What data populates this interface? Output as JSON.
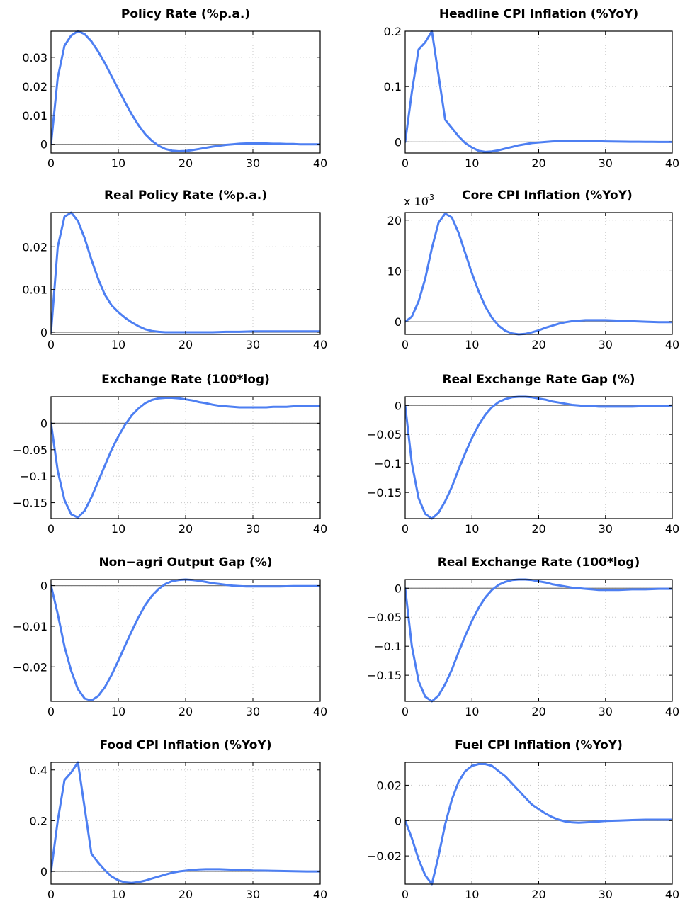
{
  "chart_data": [
    {
      "type": "line",
      "title": "Policy Rate (%p.a.)",
      "xlim": [
        0,
        40
      ],
      "ylim": [
        -0.003,
        0.039
      ],
      "xticks": [
        0,
        10,
        20,
        30,
        40
      ],
      "yticks": [
        0,
        0.01,
        0.02,
        0.03
      ],
      "ytick_labels": [
        "0",
        "0.01",
        "0.02",
        "0.03"
      ],
      "grid": "dotted",
      "zero_line": true,
      "series": [
        {
          "color": "#4d7ff2",
          "x": [
            0,
            1,
            2,
            3,
            4,
            5,
            6,
            7,
            8,
            9,
            10,
            11,
            12,
            13,
            14,
            15,
            16,
            17,
            18,
            19,
            20,
            21,
            22,
            23,
            24,
            25,
            26,
            27,
            28,
            29,
            30,
            31,
            32,
            33,
            34,
            35,
            36,
            37,
            38,
            39,
            40
          ],
          "y": [
            0,
            0.023,
            0.034,
            0.0375,
            0.039,
            0.038,
            0.0355,
            0.032,
            0.028,
            0.0235,
            0.019,
            0.0145,
            0.0103,
            0.0066,
            0.0035,
            0.0012,
            -0.0005,
            -0.0016,
            -0.0022,
            -0.0024,
            -0.0023,
            -0.002,
            -0.0016,
            -0.0012,
            -0.0008,
            -0.0005,
            -0.0002,
            0,
            0.0002,
            0.0003,
            0.0003,
            0.0003,
            0.0003,
            0.0002,
            0.0002,
            0.0001,
            0.0001,
            0,
            0,
            0,
            0
          ]
        }
      ]
    },
    {
      "type": "line",
      "title": "Headline CPI Inflation (%YoY)",
      "xlim": [
        0,
        40
      ],
      "ylim": [
        -0.02,
        0.2
      ],
      "xticks": [
        0,
        10,
        20,
        30,
        40
      ],
      "yticks": [
        0,
        0.1,
        0.2
      ],
      "ytick_labels": [
        "0",
        "0.1",
        "0.2"
      ],
      "grid": "dotted",
      "zero_line": true,
      "series": [
        {
          "color": "#4d7ff2",
          "x": [
            0,
            1,
            2,
            3,
            4,
            5,
            6,
            7,
            8,
            9,
            10,
            11,
            12,
            13,
            14,
            15,
            16,
            17,
            18,
            19,
            20,
            21,
            22,
            23,
            24,
            25,
            26,
            27,
            28,
            29,
            30,
            31,
            32,
            33,
            34,
            35,
            36,
            37,
            38,
            39,
            40
          ],
          "y": [
            0,
            0.09,
            0.167,
            0.18,
            0.2,
            0.12,
            0.04,
            0.025,
            0.01,
            -0.002,
            -0.01,
            -0.016,
            -0.018,
            -0.017,
            -0.015,
            -0.012,
            -0.009,
            -0.006,
            -0.004,
            -0.002,
            -0.001,
            0,
            0.001,
            0.0015,
            0.0018,
            0.002,
            0.002,
            0.0018,
            0.0015,
            0.0012,
            0.001,
            0.0008,
            0.0006,
            0.0005,
            0.0004,
            0.0003,
            0.0002,
            0.0001,
            0,
            0,
            0
          ]
        }
      ]
    },
    {
      "type": "line",
      "title": "Real Policy Rate (%p.a.)",
      "xlim": [
        0,
        40
      ],
      "ylim": [
        -0.0005,
        0.028
      ],
      "xticks": [
        0,
        10,
        20,
        30,
        40
      ],
      "yticks": [
        0,
        0.01,
        0.02
      ],
      "ytick_labels": [
        "0",
        "0.01",
        "0.02"
      ],
      "grid": "dotted",
      "zero_line": true,
      "series": [
        {
          "color": "#4d7ff2",
          "x": [
            0,
            1,
            2,
            3,
            4,
            5,
            6,
            7,
            8,
            9,
            10,
            11,
            12,
            13,
            14,
            15,
            16,
            17,
            18,
            19,
            20,
            22,
            24,
            26,
            28,
            30,
            32,
            34,
            36,
            38,
            40
          ],
          "y": [
            0,
            0.02,
            0.027,
            0.028,
            0.026,
            0.022,
            0.017,
            0.0125,
            0.0088,
            0.0063,
            0.0047,
            0.0034,
            0.0023,
            0.0014,
            0.0007,
            0.0003,
            0.0001,
            0,
            0,
            0,
            0,
            0,
            0,
            0.0001,
            0.0001,
            0.0002,
            0.0002,
            0.0002,
            0.0002,
            0.0002,
            0.0002
          ]
        }
      ]
    },
    {
      "type": "line",
      "title": "Core CPI Inflation (%YoY)",
      "multiplier": "x 10",
      "multiplier_exponent": "-3",
      "xlim": [
        0,
        40
      ],
      "ylim": [
        -2.5,
        21.5
      ],
      "xticks": [
        0,
        10,
        20,
        30,
        40
      ],
      "yticks": [
        0,
        10,
        20
      ],
      "ytick_labels": [
        "0",
        "10",
        "20"
      ],
      "grid": "dotted",
      "zero_line": true,
      "series": [
        {
          "color": "#4d7ff2",
          "x": [
            0,
            1,
            2,
            3,
            4,
            5,
            6,
            7,
            8,
            9,
            10,
            11,
            12,
            13,
            14,
            15,
            16,
            17,
            18,
            19,
            20,
            21,
            22,
            23,
            24,
            25,
            26,
            27,
            28,
            29,
            30,
            32,
            34,
            36,
            38,
            40
          ],
          "y": [
            0,
            1.0,
            4.0,
            8.5,
            14.5,
            19.5,
            21.3,
            20.5,
            17.5,
            13.5,
            9.5,
            6.0,
            3.0,
            0.8,
            -0.8,
            -1.8,
            -2.3,
            -2.5,
            -2.4,
            -2.1,
            -1.7,
            -1.2,
            -0.8,
            -0.4,
            -0.1,
            0.1,
            0.2,
            0.3,
            0.3,
            0.3,
            0.3,
            0.2,
            0.1,
            0,
            -0.1,
            -0.1
          ]
        }
      ]
    },
    {
      "type": "line",
      "title": "Exchange Rate (100*log)",
      "xlim": [
        0,
        40
      ],
      "ylim": [
        -0.18,
        0.05
      ],
      "xticks": [
        0,
        10,
        20,
        30,
        40
      ],
      "yticks": [
        -0.15,
        -0.1,
        -0.05,
        0
      ],
      "ytick_labels": [
        "−0.15",
        "−0.1",
        "−0.05",
        "0"
      ],
      "grid": "dotted",
      "zero_line": true,
      "series": [
        {
          "color": "#4d7ff2",
          "x": [
            0,
            1,
            2,
            3,
            4,
            5,
            6,
            7,
            8,
            9,
            10,
            11,
            12,
            13,
            14,
            15,
            16,
            17,
            18,
            19,
            20,
            21,
            22,
            23,
            24,
            25,
            26,
            27,
            28,
            29,
            30,
            31,
            32,
            33,
            34,
            35,
            36,
            37,
            38,
            39,
            40
          ],
          "y": [
            0,
            -0.09,
            -0.145,
            -0.172,
            -0.178,
            -0.165,
            -0.14,
            -0.11,
            -0.08,
            -0.05,
            -0.025,
            -0.003,
            0.015,
            0.028,
            0.038,
            0.044,
            0.047,
            0.048,
            0.048,
            0.047,
            0.045,
            0.043,
            0.04,
            0.038,
            0.035,
            0.033,
            0.032,
            0.031,
            0.03,
            0.03,
            0.03,
            0.03,
            0.03,
            0.031,
            0.031,
            0.031,
            0.032,
            0.032,
            0.032,
            0.032,
            0.032
          ]
        }
      ]
    },
    {
      "type": "line",
      "title": "Real Exchange Rate Gap (%)",
      "xlim": [
        0,
        40
      ],
      "ylim": [
        -0.195,
        0.015
      ],
      "xticks": [
        0,
        10,
        20,
        30,
        40
      ],
      "yticks": [
        -0.15,
        -0.1,
        -0.05,
        0
      ],
      "ytick_labels": [
        "−0.15",
        "−0.1",
        "−0.05",
        "0"
      ],
      "grid": "dotted",
      "zero_line": true,
      "series": [
        {
          "color": "#4d7ff2",
          "x": [
            0,
            1,
            2,
            3,
            4,
            5,
            6,
            7,
            8,
            9,
            10,
            11,
            12,
            13,
            14,
            15,
            16,
            17,
            18,
            19,
            20,
            21,
            22,
            23,
            24,
            25,
            26,
            27,
            28,
            29,
            30,
            32,
            34,
            36,
            38,
            40
          ],
          "y": [
            0,
            -0.1,
            -0.16,
            -0.187,
            -0.195,
            -0.185,
            -0.165,
            -0.14,
            -0.11,
            -0.082,
            -0.056,
            -0.034,
            -0.016,
            -0.003,
            0.006,
            0.011,
            0.014,
            0.015,
            0.015,
            0.014,
            0.012,
            0.01,
            0.007,
            0.005,
            0.003,
            0.001,
            0,
            -0.001,
            -0.001,
            -0.002,
            -0.002,
            -0.002,
            -0.002,
            -0.001,
            -0.001,
            0
          ]
        }
      ]
    },
    {
      "type": "line",
      "title": "Non−agri Output Gap (%)",
      "xlim": [
        0,
        40
      ],
      "ylim": [
        -0.0285,
        0.0015
      ],
      "xticks": [
        0,
        10,
        20,
        30,
        40
      ],
      "yticks": [
        -0.02,
        -0.01,
        0
      ],
      "ytick_labels": [
        "−0.02",
        "−0.01",
        "0"
      ],
      "grid": "dotted",
      "zero_line": true,
      "series": [
        {
          "color": "#4d7ff2",
          "x": [
            0,
            1,
            2,
            3,
            4,
            5,
            6,
            7,
            8,
            9,
            10,
            11,
            12,
            13,
            14,
            15,
            16,
            17,
            18,
            19,
            20,
            21,
            22,
            23,
            24,
            25,
            26,
            27,
            28,
            29,
            30,
            32,
            34,
            36,
            38,
            40
          ],
          "y": [
            0,
            -0.007,
            -0.015,
            -0.021,
            -0.0255,
            -0.0278,
            -0.0283,
            -0.0272,
            -0.025,
            -0.022,
            -0.0185,
            -0.0148,
            -0.0112,
            -0.0078,
            -0.0048,
            -0.0025,
            -0.0008,
            0.0004,
            0.0011,
            0.0014,
            0.0015,
            0.0014,
            0.0012,
            0.0009,
            0.0006,
            0.0004,
            0.0002,
            0,
            -0.0001,
            -0.0002,
            -0.0002,
            -0.0002,
            -0.0002,
            -0.0001,
            -0.0001,
            -0.0001
          ]
        }
      ]
    },
    {
      "type": "line",
      "title": "Real Exchange Rate (100*log)",
      "xlim": [
        0,
        40
      ],
      "ylim": [
        -0.195,
        0.015
      ],
      "xticks": [
        0,
        10,
        20,
        30,
        40
      ],
      "yticks": [
        -0.15,
        -0.1,
        -0.05,
        0
      ],
      "ytick_labels": [
        "−0.15",
        "−0.1",
        "−0.05",
        "0"
      ],
      "grid": "dotted",
      "zero_line": true,
      "series": [
        {
          "color": "#4d7ff2",
          "x": [
            0,
            1,
            2,
            3,
            4,
            5,
            6,
            7,
            8,
            9,
            10,
            11,
            12,
            13,
            14,
            15,
            16,
            17,
            18,
            19,
            20,
            21,
            22,
            23,
            24,
            25,
            26,
            27,
            28,
            29,
            30,
            32,
            34,
            36,
            38,
            40
          ],
          "y": [
            0,
            -0.1,
            -0.16,
            -0.187,
            -0.195,
            -0.185,
            -0.165,
            -0.14,
            -0.11,
            -0.082,
            -0.056,
            -0.034,
            -0.016,
            -0.003,
            0.006,
            0.011,
            0.014,
            0.015,
            0.015,
            0.014,
            0.012,
            0.01,
            0.007,
            0.005,
            0.003,
            0.001,
            0,
            -0.001,
            -0.002,
            -0.003,
            -0.003,
            -0.003,
            -0.002,
            -0.002,
            -0.001,
            -0.001
          ]
        }
      ]
    },
    {
      "type": "line",
      "title": "Food CPI Inflation (%YoY)",
      "xlim": [
        0,
        40
      ],
      "ylim": [
        -0.05,
        0.43
      ],
      "xticks": [
        0,
        10,
        20,
        30,
        40
      ],
      "yticks": [
        0,
        0.2,
        0.4
      ],
      "ytick_labels": [
        "0",
        "0.2",
        "0.4"
      ],
      "grid": "dotted",
      "zero_line": true,
      "series": [
        {
          "color": "#4d7ff2",
          "x": [
            0,
            1,
            2,
            3,
            4,
            5,
            6,
            7,
            8,
            9,
            10,
            11,
            12,
            13,
            14,
            15,
            16,
            17,
            18,
            19,
            20,
            21,
            22,
            23,
            24,
            25,
            26,
            27,
            28,
            29,
            30,
            32,
            34,
            36,
            38,
            40
          ],
          "y": [
            0,
            0.2,
            0.36,
            0.39,
            0.43,
            0.25,
            0.07,
            0.035,
            0.005,
            -0.02,
            -0.035,
            -0.043,
            -0.045,
            -0.042,
            -0.036,
            -0.028,
            -0.02,
            -0.012,
            -0.005,
            0,
            0.003,
            0.006,
            0.008,
            0.009,
            0.009,
            0.009,
            0.008,
            0.007,
            0.006,
            0.005,
            0.004,
            0.003,
            0.002,
            0.001,
            0,
            0
          ]
        }
      ]
    },
    {
      "type": "line",
      "title": "Fuel CPI Inflation (%YoY)",
      "xlim": [
        0,
        40
      ],
      "ylim": [
        -0.036,
        0.033
      ],
      "xticks": [
        0,
        10,
        20,
        30,
        40
      ],
      "yticks": [
        -0.02,
        0,
        0.02
      ],
      "ytick_labels": [
        "−0.02",
        "0",
        "0.02"
      ],
      "grid": "dotted",
      "zero_line": true,
      "series": [
        {
          "color": "#4d7ff2",
          "x": [
            0,
            1,
            2,
            3,
            4,
            5,
            6,
            7,
            8,
            9,
            10,
            11,
            12,
            13,
            14,
            15,
            16,
            17,
            18,
            19,
            20,
            21,
            22,
            23,
            24,
            25,
            26,
            27,
            28,
            29,
            30,
            32,
            34,
            36,
            38,
            40
          ],
          "y": [
            0,
            -0.01,
            -0.022,
            -0.031,
            -0.036,
            -0.02,
            -0.002,
            0.012,
            0.022,
            0.028,
            0.031,
            0.032,
            0.032,
            0.031,
            0.028,
            0.025,
            0.021,
            0.017,
            0.013,
            0.009,
            0.0065,
            0.004,
            0.002,
            0.0005,
            -0.0005,
            -0.001,
            -0.0012,
            -0.001,
            -0.0008,
            -0.0005,
            -0.0002,
            0,
            0.0003,
            0.0005,
            0.0005,
            0.0005
          ]
        }
      ]
    }
  ]
}
